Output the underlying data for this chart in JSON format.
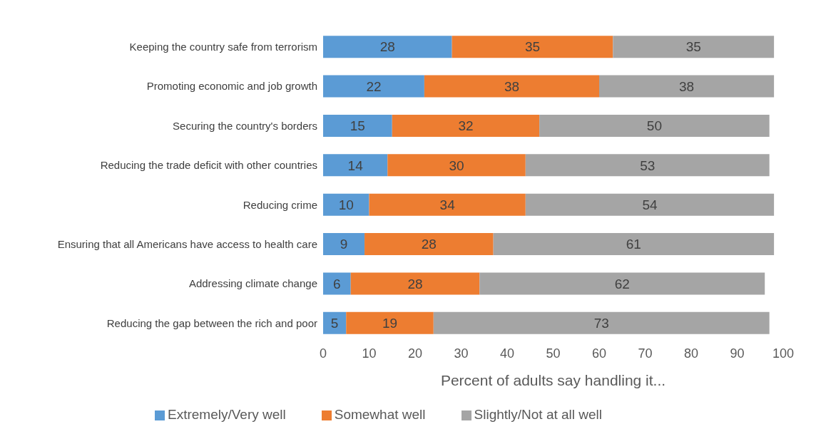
{
  "chart_data": {
    "type": "bar",
    "orientation": "horizontal",
    "stacked": true,
    "data_labels": true,
    "legend": "bottom",
    "grid": false,
    "xlabel": "Percent of adults say handling it...",
    "categories": [
      "Keeping the country safe from terrorism",
      "Promoting economic and job growth",
      "Securing the country's borders",
      "Reducing the trade deficit with other countries",
      "Reducing crime",
      "Ensuring that all Americans have access to health care",
      "Addressing climate change",
      "Reducing the gap between the rich and poor"
    ],
    "xlim": [
      0,
      100
    ],
    "xticks": [
      0,
      10,
      20,
      30,
      40,
      50,
      60,
      70,
      80,
      90,
      100
    ],
    "series": [
      {
        "name": "Extremely/Very well",
        "color": "#5b9bd5",
        "values": [
          28,
          22,
          15,
          14,
          10,
          9,
          6,
          5
        ]
      },
      {
        "name": "Somewhat well",
        "color": "#ed7d31",
        "values": [
          35,
          38,
          32,
          30,
          34,
          28,
          28,
          19
        ]
      },
      {
        "name": "Slightly/Not at all well",
        "color": "#a5a5a5",
        "values": [
          35,
          38,
          50,
          53,
          54,
          61,
          62,
          73
        ]
      }
    ]
  }
}
